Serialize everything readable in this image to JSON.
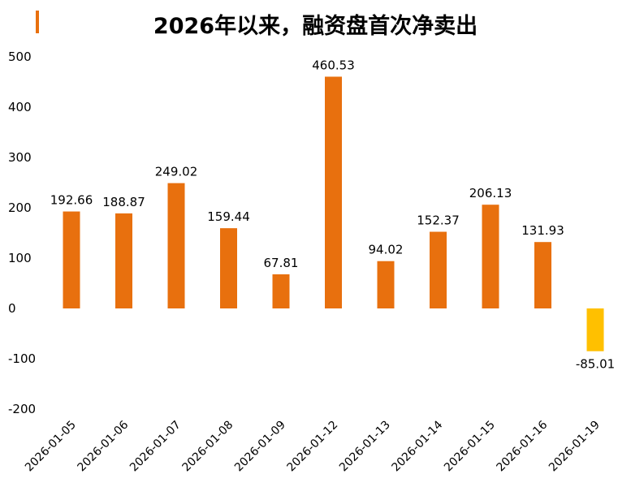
{
  "chart_data": {
    "type": "bar",
    "title": "2026年以来，融资盘首次净卖出",
    "categories": [
      "2026-01-05",
      "2026-01-06",
      "2026-01-07",
      "2026-01-08",
      "2026-01-09",
      "2026-01-12",
      "2026-01-13",
      "2026-01-14",
      "2026-01-15",
      "2026-01-16",
      "2026-01-19"
    ],
    "values": [
      192.66,
      188.87,
      249.02,
      159.44,
      67.81,
      460.53,
      94.02,
      152.37,
      206.13,
      131.93,
      -85.01
    ],
    "data_labels": [
      "192.66",
      "188.87",
      "249.02",
      "159.44",
      "67.81",
      "460.53",
      "94.02",
      "152.37",
      "206.13",
      "131.93",
      "-85.01"
    ],
    "ylim": [
      -200,
      500
    ],
    "yticks": [
      -200,
      -100,
      0,
      100,
      200,
      300,
      400,
      500
    ],
    "xlabel": "",
    "ylabel": "",
    "grid": false,
    "legend": "none",
    "colors": {
      "positive": "#E8700E",
      "negative": "#FFC000",
      "accent": "#E8700E"
    }
  }
}
